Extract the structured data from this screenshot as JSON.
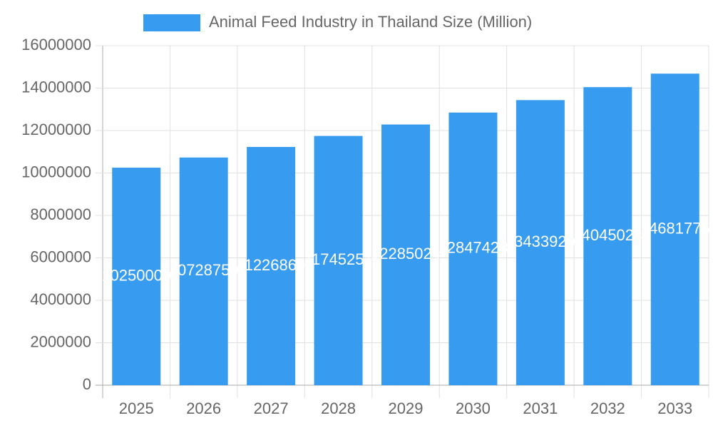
{
  "chart_data": {
    "type": "bar",
    "series": [
      {
        "name": "Animal Feed Industry in Thailand Size (Million)",
        "color": "#379cef",
        "values": [
          10250000,
          10728750,
          11226860,
          11745251,
          12285024,
          12847428,
          13433920,
          14045024,
          14681775
        ]
      }
    ],
    "categories": [
      "2025",
      "2026",
      "2027",
      "2028",
      "2029",
      "2030",
      "2031",
      "2032",
      "2033"
    ],
    "ylim": [
      0,
      16000000
    ],
    "yticks": [
      0,
      2000000,
      4000000,
      6000000,
      8000000,
      10000000,
      12000000,
      14000000,
      16000000
    ],
    "grid": true,
    "legend": "top"
  }
}
